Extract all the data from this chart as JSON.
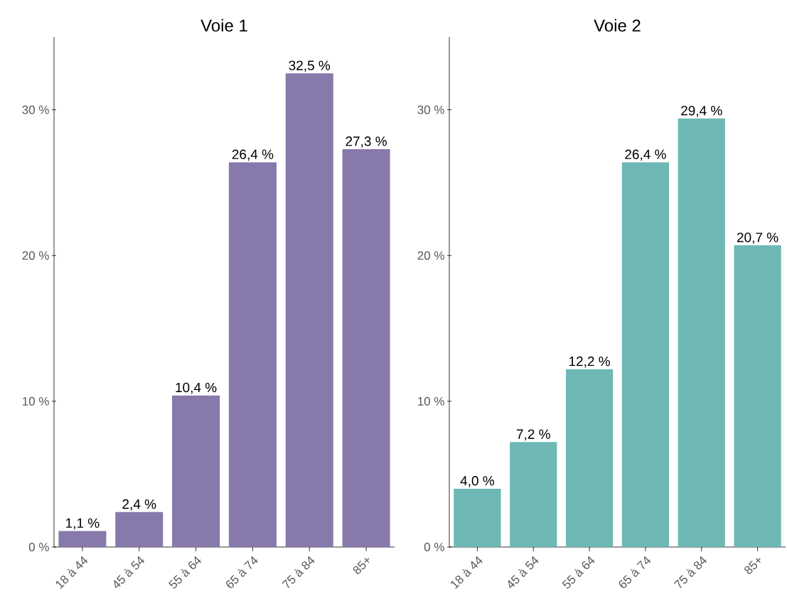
{
  "chart_data": [
    {
      "type": "bar",
      "title": "Voie 1",
      "categories": [
        "18 à 44",
        "45 à 54",
        "55 à 64",
        "65 à 74",
        "75 à 84",
        "85+"
      ],
      "values": [
        1.1,
        2.4,
        10.4,
        26.4,
        32.5,
        27.3
      ],
      "color": "#8779ab",
      "value_labels": [
        "1,1 %",
        "2,4 %",
        "10,4 %",
        "26,4 %",
        "32,5 %",
        "27,3 %"
      ],
      "ylim": [
        0,
        35
      ],
      "yticks": [
        {
          "value": 0,
          "label": "0 %"
        },
        {
          "value": 10,
          "label": "10 %"
        },
        {
          "value": 20,
          "label": "20 %"
        },
        {
          "value": 30,
          "label": "30 %"
        }
      ]
    },
    {
      "type": "bar",
      "title": "Voie 2",
      "categories": [
        "18 à 44",
        "45 à 54",
        "55 à 64",
        "65 à 74",
        "75 à 84",
        "85+"
      ],
      "values": [
        4.0,
        7.2,
        12.2,
        26.4,
        29.4,
        20.7
      ],
      "color": "#6db8b4",
      "value_labels": [
        "4,0 %",
        "7,2 %",
        "12,2 %",
        "26,4 %",
        "29,4 %",
        "20,7 %"
      ],
      "ylim": [
        0,
        35
      ],
      "yticks": [
        {
          "value": 0,
          "label": "0 %"
        },
        {
          "value": 10,
          "label": "10 %"
        },
        {
          "value": 20,
          "label": "20 %"
        },
        {
          "value": 30,
          "label": "30 %"
        }
      ]
    }
  ]
}
